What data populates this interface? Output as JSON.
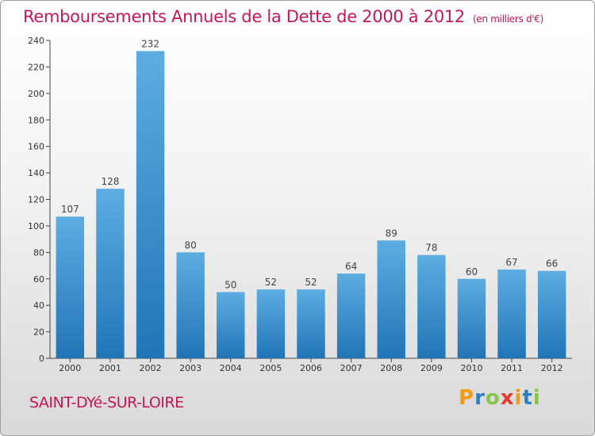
{
  "title": "Remboursements Annuels de la Dette de 2000 à 2012",
  "subtitle": "(en milliers d'€)",
  "city": "SAINT-DYé-SUR-LOIRE",
  "logo": {
    "letters": [
      "P",
      "r",
      "o",
      "x",
      "i",
      "t",
      "i"
    ],
    "colors": [
      "#f39c12",
      "#2e7fc1",
      "#8bc34a",
      "#e53935",
      "#f39c12",
      "#2e7fc1",
      "#8bc34a"
    ]
  },
  "colors": {
    "title": "#c2185b",
    "bar_top": "#5dade2",
    "bar_bottom": "#2175b6",
    "axis": "#444444"
  },
  "chart_data": {
    "type": "bar",
    "categories": [
      "2000",
      "2001",
      "2002",
      "2003",
      "2004",
      "2005",
      "2006",
      "2007",
      "2008",
      "2009",
      "2010",
      "2011",
      "2012"
    ],
    "values": [
      107,
      128,
      232,
      80,
      50,
      52,
      52,
      64,
      89,
      78,
      60,
      67,
      66
    ],
    "xlabel": "",
    "ylabel": "",
    "ylim": [
      0,
      240
    ],
    "yticks": [
      0,
      20,
      40,
      60,
      80,
      100,
      120,
      140,
      160,
      180,
      200,
      220,
      240
    ],
    "grid": false,
    "data_labels": true
  }
}
